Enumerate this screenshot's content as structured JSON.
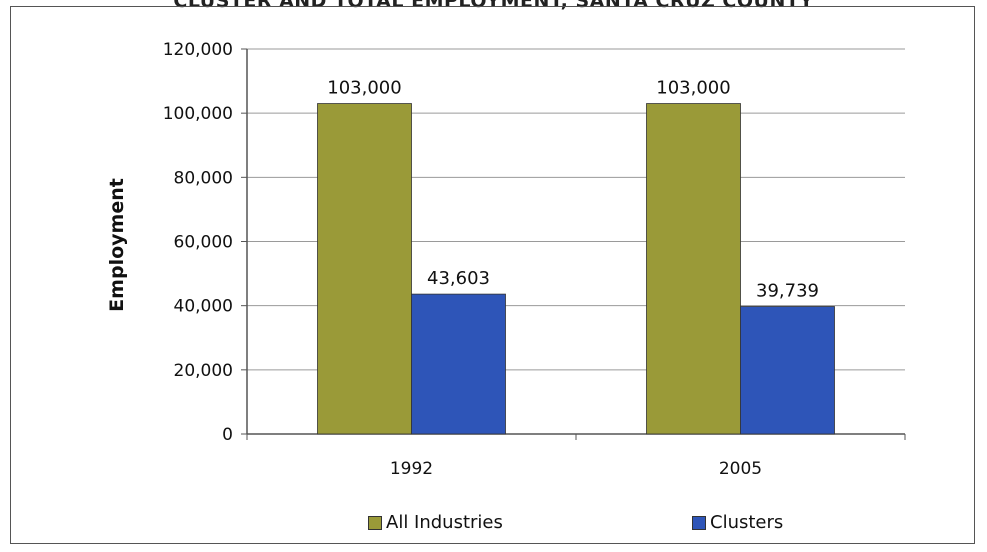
{
  "title": "CLUSTER AND TOTAL EMPLOYMENT, SANTA CRUZ COUNTY",
  "colors": {
    "all_industries": "#9a9a38",
    "clusters": "#2e55b8"
  },
  "chart_data": {
    "type": "bar",
    "title": "CLUSTER AND TOTAL EMPLOYMENT, SANTA CRUZ COUNTY",
    "xlabel": "",
    "ylabel": "Employment",
    "ylim": [
      0,
      120000
    ],
    "yticks": [
      0,
      20000,
      40000,
      60000,
      80000,
      100000,
      120000
    ],
    "ytick_labels": [
      "0",
      "20,000",
      "40,000",
      "60,000",
      "80,000",
      "100,000",
      "120,000"
    ],
    "grid": true,
    "legend": "bottom",
    "categories": [
      "1992",
      "2005"
    ],
    "series": [
      {
        "name": "All Industries",
        "values": [
          103000,
          103000
        ],
        "labels": [
          "103,000",
          "103,000"
        ]
      },
      {
        "name": "Clusters",
        "values": [
          43603,
          39739
        ],
        "labels": [
          "43,603",
          "39,739"
        ]
      }
    ]
  }
}
